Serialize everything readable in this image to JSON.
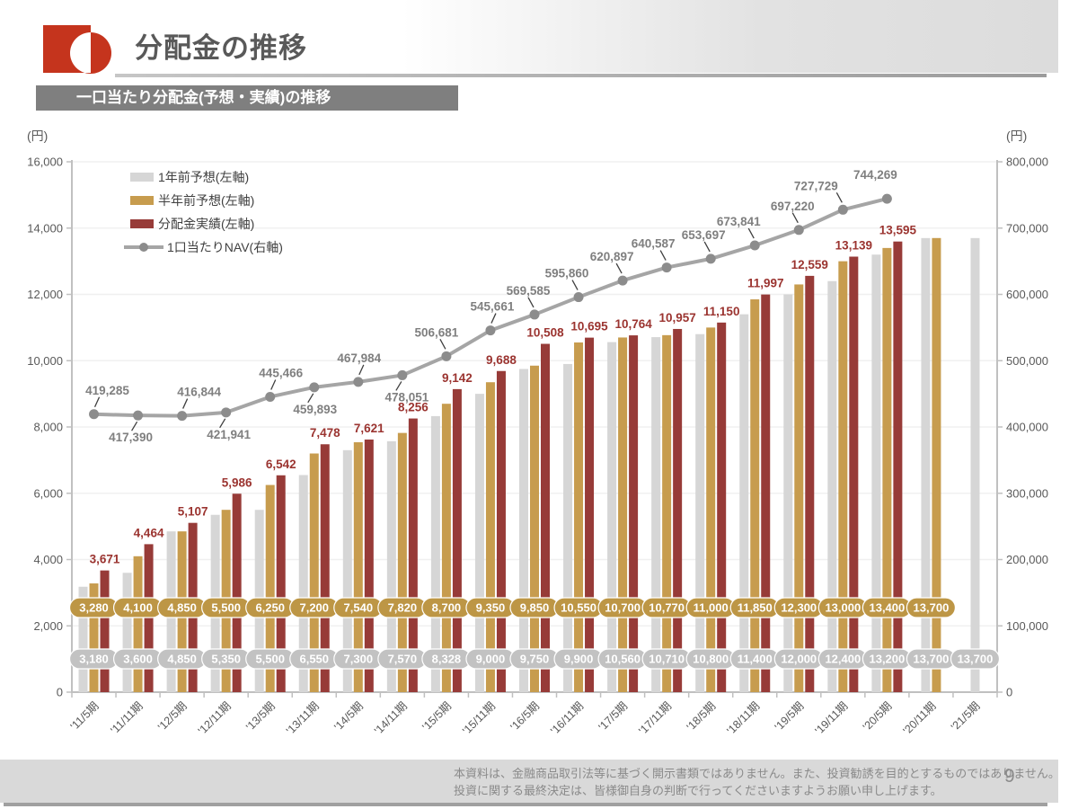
{
  "header": {
    "title": "分配金の推移",
    "subtitle": "一口当たり分配金(予想・実績)の推移"
  },
  "footer": {
    "disclaimer_line1": "本資料は、金融商品取引法等に基づく開示書類ではありません。また、投資勧誘を目的とするものではありません。",
    "disclaimer_line2": "投資に関する最終決定は、皆様御自身の判断で行ってくださいますようお願い申し上げます。",
    "page_number": "9"
  },
  "colors": {
    "logo_red": "#c5341d",
    "title_gray": "#595959",
    "subtitle_bg": "#7f7f7f",
    "bar_gray": "#d6d6d6",
    "bar_gold": "#c79c4e",
    "bar_red": "#973b38",
    "nav_line": "#a5a5a5",
    "nav_marker": "#8c8c8c",
    "badge_gold": "#bd9645",
    "badge_gray": "#c2c2c2",
    "label_red": "#9b3430",
    "label_gray": "#7f7f7f",
    "axis_line": "#c0c0c0",
    "grid_line": "#f0f0f0",
    "tick_text": "#595959",
    "legend_text": "#404040"
  },
  "chart_data": {
    "type": "bar",
    "subtype": "grouped bars with overlay line",
    "title": "一口当たり分配金(予想・実績)の推移",
    "left_axis": {
      "unit": "(円)",
      "min": 0,
      "max": 16000,
      "step": 2000,
      "label": "分配金"
    },
    "right_axis": {
      "unit": "(円)",
      "min": 0,
      "max": 800000,
      "step": 100000,
      "label": "NAV"
    },
    "grid": true,
    "legend_position": "top-left-inside",
    "categories": [
      "'11/5期",
      "'11/11期",
      "'12/5期",
      "'12/11期",
      "'13/5期",
      "'13/11期",
      "'14/5期",
      "'14/11期",
      "'15/5期",
      "'15/11期",
      "'16/5期",
      "'16/11期",
      "'17/5期",
      "'17/11期",
      "'18/5期",
      "'18/11期",
      "'19/5期",
      "'19/11期",
      "'20/5期",
      "'20/11期",
      "'21/5期"
    ],
    "series": [
      {
        "name": "1年前予想(左軸)",
        "type": "bar",
        "axis": "left",
        "color": "#d6d6d6",
        "values": [
          3180,
          3600,
          4850,
          5350,
          5500,
          6550,
          7300,
          7570,
          8328,
          9000,
          9750,
          9900,
          10560,
          10710,
          10800,
          11400,
          12000,
          12400,
          13200,
          13700,
          13700
        ]
      },
      {
        "name": "半年前予想(左軸)",
        "type": "bar",
        "axis": "left",
        "color": "#c79c4e",
        "values": [
          3280,
          4100,
          4850,
          5500,
          6250,
          7200,
          7540,
          7820,
          8700,
          9350,
          9850,
          10550,
          10700,
          10770,
          11000,
          11850,
          12300,
          13000,
          13400,
          13700,
          null
        ]
      },
      {
        "name": "分配金実績(左軸)",
        "type": "bar",
        "axis": "left",
        "color": "#973b38",
        "values": [
          3671,
          4464,
          5107,
          5986,
          6542,
          7478,
          7621,
          8256,
          9142,
          9688,
          10508,
          10695,
          10764,
          10957,
          11150,
          11997,
          12559,
          13139,
          13595,
          null,
          null
        ]
      },
      {
        "name": "1口当たりNAV(右軸)",
        "type": "line",
        "axis": "right",
        "color": "#a5a5a5",
        "values": [
          419285,
          417390,
          416844,
          421941,
          445466,
          459893,
          467984,
          478051,
          506681,
          545661,
          569585,
          595860,
          620897,
          640587,
          653697,
          673841,
          697220,
          727729,
          744269,
          null,
          null
        ]
      }
    ],
    "data_label_rows": {
      "actual_labels_above_red_bars": "series[2] values shown in dark red above each 分配金実績 bar",
      "gold_badge_row": "series[1] values shown in gold pills at y≈6250 level",
      "gray_badge_row": "series[0] values shown in gray pills at y≈3000 level",
      "nav_labels": "series[3] values shown in gray beside each NAV marker"
    }
  }
}
